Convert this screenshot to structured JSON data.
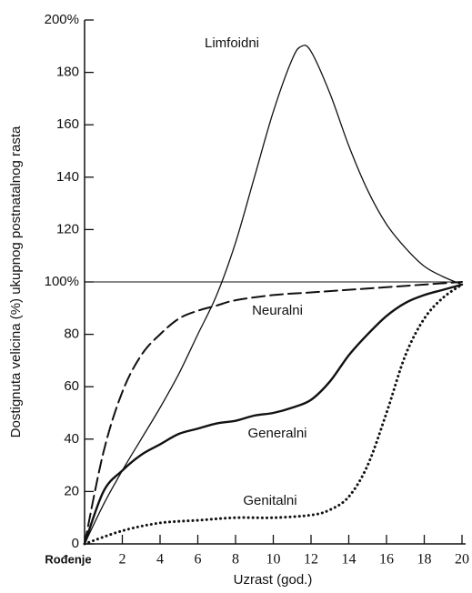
{
  "chart_data": {
    "type": "line",
    "x_label": "Uzrast (god.)",
    "y_label": "Dostignuta velicina (%) ukupnog postnatalnog rasta",
    "xlim": [
      0,
      20
    ],
    "ylim": [
      0,
      200
    ],
    "xticks": [
      {
        "value": 0,
        "label": "Rođenje"
      },
      2,
      4,
      6,
      8,
      10,
      12,
      14,
      16,
      18,
      20
    ],
    "yticks": [
      0,
      20,
      40,
      60,
      80,
      {
        "value": 100,
        "label": "100%"
      },
      120,
      140,
      160,
      180,
      {
        "value": 200,
        "label": "200%"
      }
    ],
    "hlines": [
      100
    ],
    "series": [
      {
        "name": "Limfoidni",
        "color": "#111111",
        "style": "solid",
        "width": 1.3,
        "x": [
          0,
          1,
          2,
          3,
          4,
          5,
          6,
          7,
          8,
          9,
          10,
          11,
          11.5,
          12,
          13,
          14,
          15,
          16,
          17,
          18,
          19,
          20
        ],
        "values": [
          0,
          15,
          28,
          40,
          52,
          65,
          80,
          95,
          115,
          140,
          165,
          185,
          190,
          188,
          172,
          152,
          135,
          122,
          113,
          106,
          102,
          99
        ]
      },
      {
        "name": "Neuralni",
        "color": "#111111",
        "style": "dashed",
        "width": 2,
        "x": [
          0,
          1,
          2,
          3,
          4,
          5,
          6,
          7,
          8,
          10,
          12,
          14,
          16,
          18,
          20
        ],
        "values": [
          0,
          35,
          58,
          72,
          80,
          86,
          89,
          91,
          93,
          95,
          96,
          97,
          98,
          99,
          100
        ]
      },
      {
        "name": "Generalni",
        "color": "#111111",
        "style": "solid",
        "width": 2.4,
        "x": [
          0,
          1,
          2,
          3,
          4,
          5,
          6,
          7,
          8,
          9,
          10,
          11,
          12,
          13,
          14,
          15,
          16,
          17,
          18,
          19,
          20
        ],
        "values": [
          0,
          20,
          28,
          34,
          38,
          42,
          44,
          46,
          47,
          49,
          50,
          52,
          55,
          62,
          72,
          80,
          87,
          92,
          95,
          97,
          99
        ]
      },
      {
        "name": "Genitalni",
        "color": "#111111",
        "style": "dotted",
        "width": 3,
        "x": [
          0,
          2,
          4,
          6,
          8,
          10,
          12,
          13,
          14,
          15,
          16,
          17,
          18,
          19,
          20
        ],
        "values": [
          0,
          5,
          8,
          9,
          10,
          10,
          11,
          13,
          18,
          30,
          50,
          72,
          86,
          94,
          99
        ]
      }
    ]
  }
}
